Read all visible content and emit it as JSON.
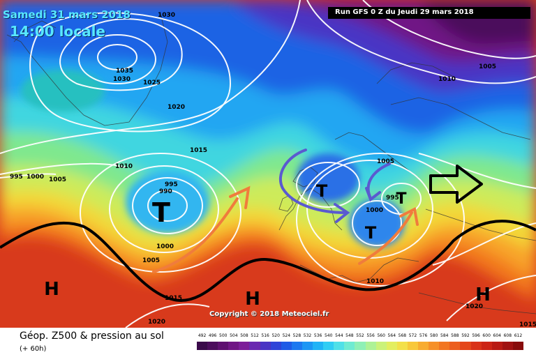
{
  "header": {
    "date": "Samedi 31 mars 2018",
    "time": "14:00 locale",
    "run": "Run GFS 0 Z du Jeudi 29 mars 2018"
  },
  "copyright": "Copyright © 2018 Meteociel.fr",
  "legend": {
    "title": "Géop. Z500 & pression au sol",
    "subtitle": "(+ 60h)",
    "values": [
      "492",
      "496",
      "500",
      "504",
      "508",
      "512",
      "516",
      "520",
      "524",
      "528",
      "532",
      "536",
      "540",
      "544",
      "548",
      "552",
      "556",
      "560",
      "564",
      "568",
      "572",
      "576",
      "580",
      "584",
      "588",
      "592",
      "596",
      "600",
      "604",
      "608",
      "612"
    ],
    "colors": [
      "#3a0a4a",
      "#4b0c5c",
      "#5e0f70",
      "#701585",
      "#7c1d99",
      "#6a28b0",
      "#4a34c4",
      "#2f44d8",
      "#1f5be6",
      "#1c78f0",
      "#1c96f4",
      "#20b3f6",
      "#30cdf4",
      "#4fe0e8",
      "#6febd2",
      "#8ff0b6",
      "#aef296",
      "#cbf27a",
      "#e3ee60",
      "#f3e04a",
      "#f8c83a",
      "#f8ac30",
      "#f69028",
      "#f27622",
      "#ec5e1e",
      "#e4461a",
      "#d93218",
      "#cc2416",
      "#b81a14",
      "#a01212",
      "#880c0c"
    ]
  },
  "map": {
    "isobar_labels": [
      "1030",
      "1035",
      "1030",
      "1025",
      "1020",
      "1015",
      "1010",
      "995",
      "1000",
      "1005",
      "990",
      "995",
      "1000",
      "1005",
      "1010",
      "1005",
      "1000",
      "995",
      "1010",
      "1020",
      "1015",
      "1005",
      "1020",
      "1015"
    ],
    "pressure_systems": [
      {
        "type": "low",
        "symbol": "T"
      },
      {
        "type": "low",
        "symbol": "T"
      },
      {
        "type": "low",
        "symbol": "T"
      },
      {
        "type": "low",
        "symbol": "T"
      },
      {
        "type": "high",
        "symbol": "H"
      },
      {
        "type": "high",
        "symbol": "H"
      },
      {
        "type": "high",
        "symbol": "H"
      }
    ],
    "colors": {
      "z500_contour": "#000000",
      "isobar": "#ffffff",
      "warm_advection_arrow": "#f07c3c",
      "low_track_arrow": "#5a5ad0",
      "movement_arrow": "#000000"
    }
  }
}
